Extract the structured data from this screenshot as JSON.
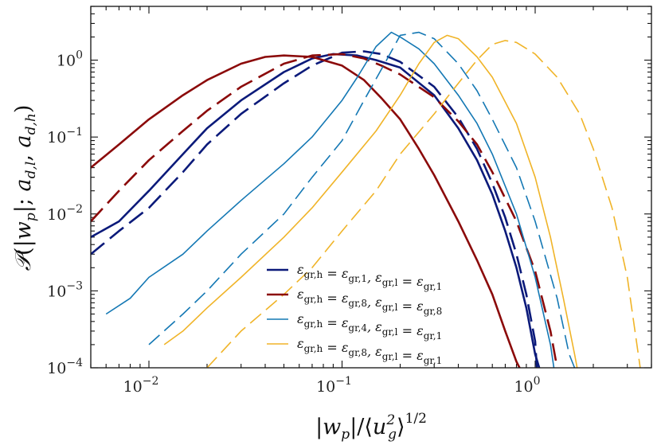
{
  "chart_data": {
    "type": "line",
    "x_scale": "log",
    "y_scale": "log",
    "xlim": [
      0.005,
      4
    ],
    "ylim": [
      0.0001,
      5
    ],
    "xlabel": "|w_p|/⟨u_g^2⟩^{1/2}",
    "ylabel": "P(|w_p|; a_{d,l}, a_{d,h})",
    "x_ticks": [
      {
        "value": 0.01,
        "base": "10",
        "exp": "−2"
      },
      {
        "value": 0.1,
        "base": "10",
        "exp": "−1"
      },
      {
        "value": 1,
        "base": "10",
        "exp": "0"
      }
    ],
    "y_ticks": [
      {
        "value": 0.0001,
        "base": "10",
        "exp": "−4"
      },
      {
        "value": 0.001,
        "base": "10",
        "exp": "−3"
      },
      {
        "value": 0.01,
        "base": "10",
        "exp": "−2"
      },
      {
        "value": 0.1,
        "base": "10",
        "exp": "−1"
      },
      {
        "value": 1,
        "base": "10",
        "exp": "0"
      }
    ],
    "legend_position": "lower-right",
    "series": [
      {
        "name": "ε_{gr,h} = ε_{gr,1}, ε_{gr,l} = ε_{gr,1}",
        "color": "#0b1a7a",
        "style": "solid",
        "width": 2.6,
        "x": [
          0.005,
          0.007,
          0.01,
          0.015,
          0.02,
          0.03,
          0.05,
          0.07,
          0.09,
          0.12,
          0.15,
          0.2,
          0.3,
          0.4,
          0.5,
          0.6,
          0.7,
          0.8,
          0.9,
          1.0,
          1.05
        ],
        "y": [
          0.005,
          0.008,
          0.02,
          0.06,
          0.13,
          0.3,
          0.7,
          1.05,
          1.2,
          1.15,
          1.0,
          0.8,
          0.35,
          0.13,
          0.05,
          0.018,
          0.006,
          0.002,
          0.0006,
          0.00015,
          0.0001
        ]
      },
      {
        "name": "",
        "color": "#0b1a7a",
        "style": "dashed",
        "width": 2.6,
        "x": [
          0.005,
          0.007,
          0.01,
          0.015,
          0.02,
          0.03,
          0.05,
          0.07,
          0.1,
          0.13,
          0.16,
          0.2,
          0.3,
          0.4,
          0.5,
          0.6,
          0.7,
          0.8,
          0.9,
          1.0,
          1.02
        ],
        "y": [
          0.003,
          0.006,
          0.012,
          0.035,
          0.08,
          0.2,
          0.5,
          0.85,
          1.25,
          1.3,
          1.2,
          0.95,
          0.45,
          0.18,
          0.07,
          0.025,
          0.009,
          0.003,
          0.0009,
          0.00022,
          0.0001
        ]
      },
      {
        "name": "ε_{gr,h} = ε_{gr,8}, ε_{gr,l} = ε_{gr,8}",
        "color": "#8b0a0a",
        "style": "solid",
        "width": 2.6,
        "x": [
          0.005,
          0.007,
          0.01,
          0.015,
          0.02,
          0.03,
          0.04,
          0.05,
          0.07,
          0.1,
          0.13,
          0.16,
          0.2,
          0.25,
          0.3,
          0.4,
          0.5,
          0.6,
          0.7,
          0.8,
          0.83
        ],
        "y": [
          0.04,
          0.08,
          0.17,
          0.35,
          0.55,
          0.9,
          1.1,
          1.15,
          1.1,
          0.85,
          0.55,
          0.32,
          0.17,
          0.07,
          0.032,
          0.008,
          0.0025,
          0.0009,
          0.0003,
          0.00012,
          0.0001
        ]
      },
      {
        "name": "",
        "color": "#8b0a0a",
        "style": "dashed",
        "width": 2.6,
        "x": [
          0.005,
          0.007,
          0.01,
          0.015,
          0.02,
          0.03,
          0.05,
          0.07,
          0.1,
          0.13,
          0.16,
          0.2,
          0.3,
          0.4,
          0.5,
          0.6,
          0.8,
          1.0,
          1.2,
          1.3
        ],
        "y": [
          0.008,
          0.02,
          0.05,
          0.12,
          0.22,
          0.45,
          0.9,
          1.15,
          1.2,
          1.05,
          0.85,
          0.65,
          0.33,
          0.16,
          0.08,
          0.035,
          0.008,
          0.0018,
          0.0003,
          0.0001
        ]
      },
      {
        "name": "ε_{gr,h} = ε_{gr,4}, ε_{gr,l} = ε_{gr,1}",
        "color": "#1478b4",
        "style": "solid",
        "width": 1.6,
        "x": [
          0.006,
          0.008,
          0.01,
          0.015,
          0.02,
          0.03,
          0.05,
          0.07,
          0.1,
          0.12,
          0.15,
          0.18,
          0.2,
          0.25,
          0.3,
          0.4,
          0.5,
          0.6,
          0.8,
          1.0,
          1.2,
          1.25
        ],
        "y": [
          0.0005,
          0.0008,
          0.0015,
          0.003,
          0.006,
          0.015,
          0.045,
          0.1,
          0.3,
          0.6,
          1.5,
          2.3,
          2.0,
          1.4,
          0.9,
          0.35,
          0.15,
          0.06,
          0.01,
          0.0015,
          0.0002,
          0.0001
        ]
      },
      {
        "name": "",
        "color": "#1478b4",
        "style": "dashed",
        "width": 1.6,
        "x": [
          0.01,
          0.015,
          0.02,
          0.03,
          0.05,
          0.07,
          0.1,
          0.13,
          0.17,
          0.2,
          0.25,
          0.3,
          0.4,
          0.5,
          0.6,
          0.8,
          1.0,
          1.3,
          1.5,
          1.6
        ],
        "y": [
          0.0002,
          0.0005,
          0.001,
          0.003,
          0.01,
          0.03,
          0.09,
          0.3,
          1.0,
          2.1,
          2.3,
          1.9,
          0.9,
          0.4,
          0.17,
          0.04,
          0.008,
          0.0008,
          0.00015,
          0.0001
        ]
      },
      {
        "name": "ε_{gr,h} = ε_{gr,8}, ε_{gr,l} = ε_{gr,1}",
        "color": "#f0b428",
        "style": "solid",
        "width": 1.6,
        "x": [
          0.012,
          0.015,
          0.02,
          0.03,
          0.05,
          0.07,
          0.1,
          0.15,
          0.2,
          0.25,
          0.3,
          0.35,
          0.4,
          0.5,
          0.6,
          0.8,
          1.0,
          1.2,
          1.4,
          1.6,
          1.65
        ],
        "y": [
          0.0002,
          0.0003,
          0.0006,
          0.0015,
          0.005,
          0.012,
          0.035,
          0.12,
          0.35,
          0.9,
          1.7,
          2.1,
          1.9,
          1.1,
          0.6,
          0.15,
          0.03,
          0.005,
          0.0008,
          0.00015,
          0.0001
        ]
      },
      {
        "name": "",
        "color": "#f0b428",
        "style": "dashed",
        "width": 1.6,
        "x": [
          0.02,
          0.03,
          0.05,
          0.07,
          0.1,
          0.15,
          0.2,
          0.3,
          0.4,
          0.5,
          0.6,
          0.7,
          0.8,
          1.0,
          1.3,
          1.7,
          2.0,
          2.5,
          3.0,
          3.5
        ],
        "y": [
          0.0001,
          0.0003,
          0.0009,
          0.002,
          0.006,
          0.02,
          0.06,
          0.2,
          0.5,
          1.0,
          1.6,
          1.8,
          1.7,
          1.2,
          0.6,
          0.2,
          0.07,
          0.012,
          0.0015,
          0.0001
        ]
      }
    ]
  }
}
